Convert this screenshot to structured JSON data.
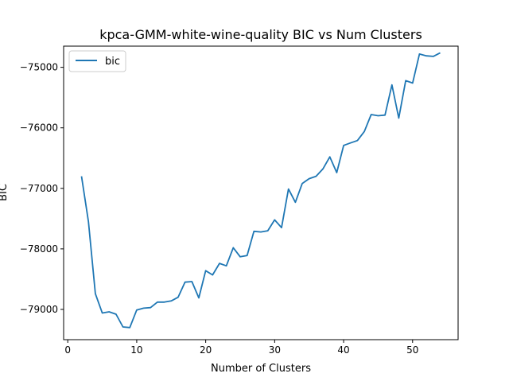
{
  "chart_data": {
    "type": "line",
    "title": "kpca-GMM-white-wine-quality BIC vs Num Clusters",
    "xlabel": "Number of Clusters",
    "ylabel": "BIC",
    "xlim": [
      -0.6,
      56.6
    ],
    "ylim": [
      -79500,
      -74650
    ],
    "xticks": [
      0,
      10,
      20,
      30,
      40,
      50
    ],
    "yticks": [
      -79000,
      -78000,
      -77000,
      -76000,
      -75000
    ],
    "xtick_labels": [
      "0",
      "10",
      "20",
      "30",
      "40",
      "50"
    ],
    "ytick_labels": [
      "−79000",
      "−78000",
      "−77000",
      "−76000",
      "−75000"
    ],
    "grid": false,
    "legend": {
      "position": "top-left",
      "entries": [
        "bic"
      ]
    },
    "series": [
      {
        "name": "bic",
        "color": "#1f77b4",
        "x": [
          2,
          3,
          4,
          5,
          6,
          7,
          8,
          9,
          10,
          11,
          12,
          13,
          14,
          15,
          16,
          17,
          18,
          19,
          20,
          21,
          22,
          23,
          24,
          25,
          26,
          27,
          28,
          29,
          30,
          31,
          32,
          33,
          34,
          35,
          36,
          37,
          38,
          39,
          40,
          41,
          42,
          43,
          44,
          45,
          46,
          47,
          48,
          49,
          50,
          51,
          52,
          53,
          54
        ],
        "y": [
          -76800,
          -77550,
          -78740,
          -79060,
          -79040,
          -79080,
          -79290,
          -79300,
          -79010,
          -78980,
          -78970,
          -78880,
          -78880,
          -78860,
          -78800,
          -78550,
          -78540,
          -78810,
          -78360,
          -78430,
          -78240,
          -78280,
          -77980,
          -78130,
          -78110,
          -77710,
          -77720,
          -77700,
          -77520,
          -77650,
          -77010,
          -77230,
          -76920,
          -76840,
          -76800,
          -76680,
          -76480,
          -76740,
          -76290,
          -76250,
          -76210,
          -76060,
          -75780,
          -75800,
          -75790,
          -75290,
          -75840,
          -75220,
          -75260,
          -74780,
          -74810,
          -74820,
          -74760
        ]
      }
    ]
  }
}
